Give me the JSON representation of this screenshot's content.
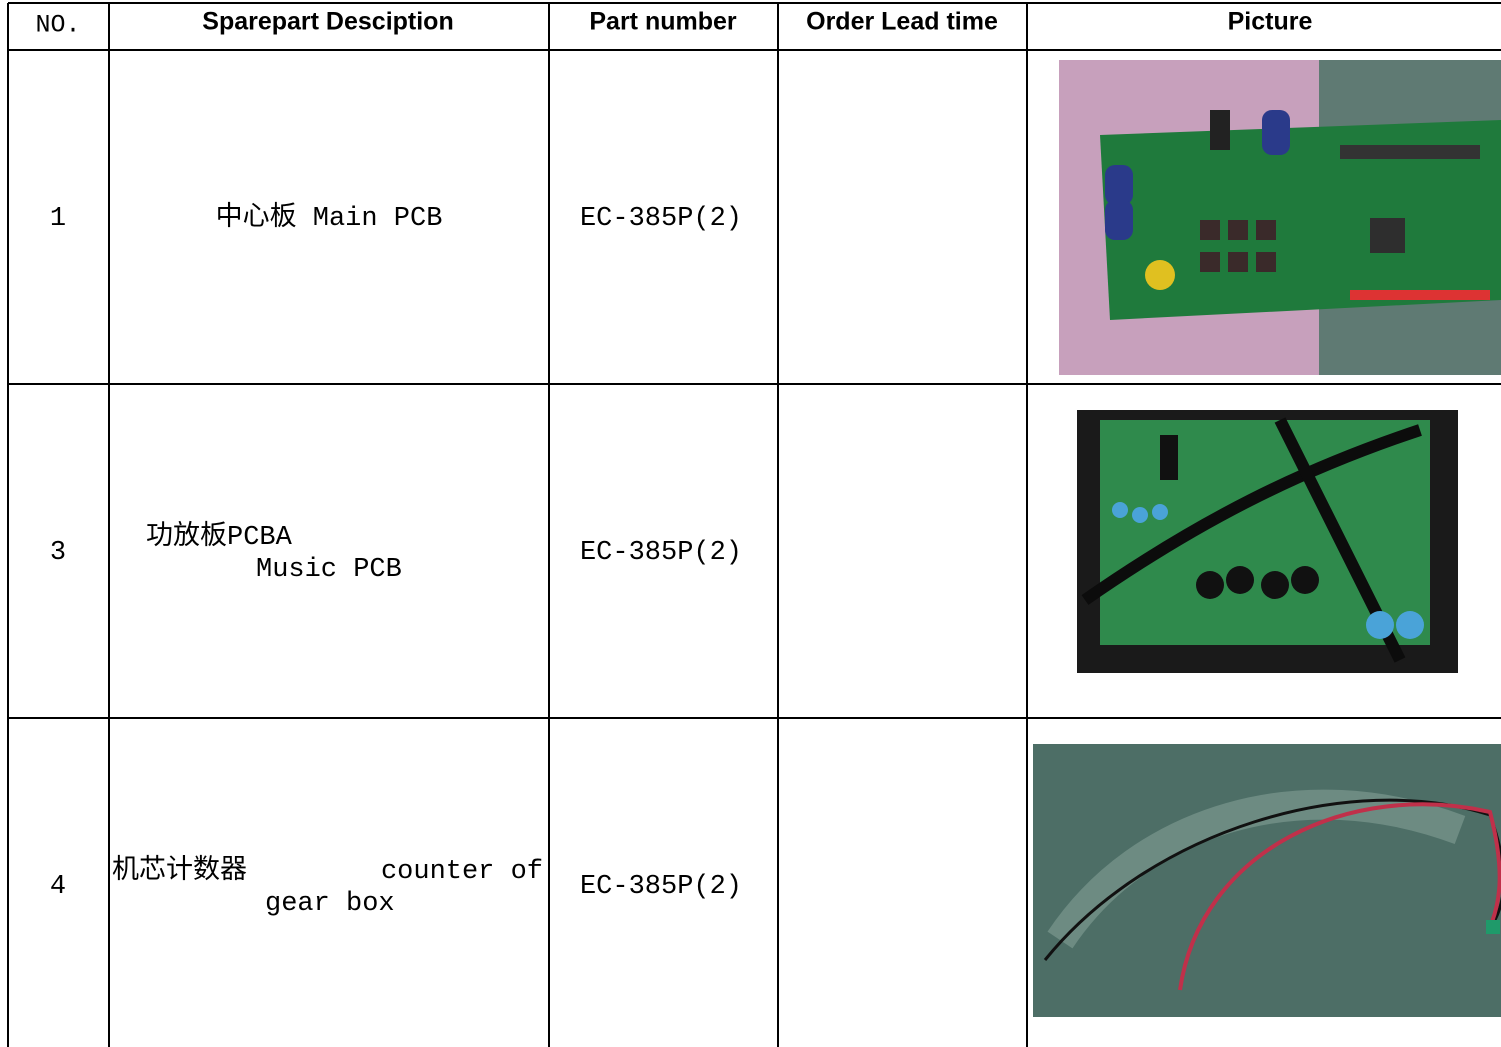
{
  "table": {
    "header": [
      "NO.",
      "Sparepart Desciption",
      "Part number",
      "Order Lead time",
      "Picture"
    ],
    "rows": [
      {
        "no": "1",
        "description": [
          "中心板 Main PCB"
        ],
        "part_number": "EC-385P(2)"
      },
      {
        "no": "3",
        "description": [
          "功放板PCBA",
          "Music PCB"
        ],
        "part_number": "EC-385P(2)"
      },
      {
        "no": "4",
        "description": [
          "机芯计数器",
          "counter of",
          "gear box"
        ],
        "part_number": "EC-385P(2)"
      }
    ]
  }
}
